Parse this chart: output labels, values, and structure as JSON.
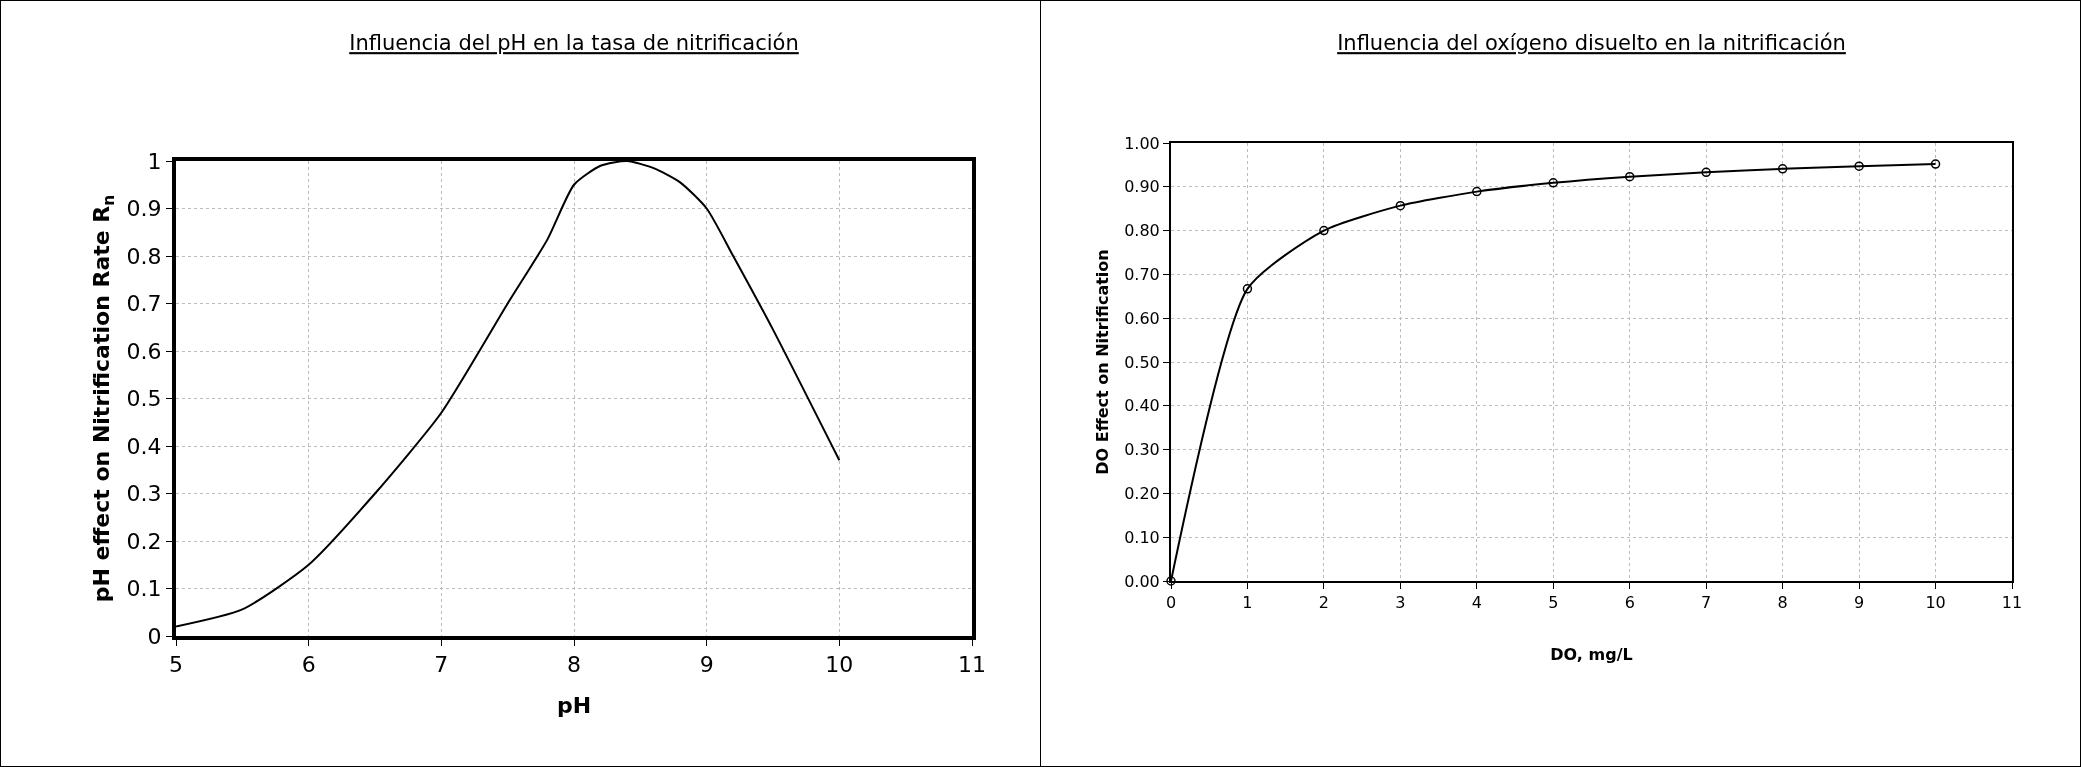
{
  "chart_data": [
    {
      "type": "line",
      "title": "Influencia del pH en la tasa de nitrificación",
      "xlabel": "pH",
      "ylabel": "pH effect on Nitrification Rate R$_{n}$",
      "x": [
        5,
        5.5,
        6,
        6.5,
        7,
        7.5,
        7.8,
        8,
        8.2,
        8.4,
        8.6,
        8.8,
        9,
        9.2,
        9.5,
        10
      ],
      "series": [
        {
          "color": "#000000",
          "values": [
            0.02,
            0.056,
            0.15,
            0.3,
            0.47,
            0.7,
            0.835,
            0.95,
            0.99,
            1.0,
            0.985,
            0.955,
            0.9,
            0.8,
            0.645,
            0.37
          ]
        }
      ],
      "xlim": [
        5,
        11
      ],
      "xticks": [
        5,
        6,
        7,
        8,
        9,
        10,
        11
      ],
      "ylim": [
        0,
        1
      ],
      "yticks": [
        0,
        0.1,
        0.2,
        0.3,
        0.4,
        0.5,
        0.6,
        0.7,
        0.8,
        0.9,
        1
      ],
      "grid": true,
      "marker": "none",
      "line_style": "solid"
    },
    {
      "type": "line",
      "title": "Influencia del oxígeno disuelto en la nitrificación",
      "xlabel": "DO, mg/L",
      "ylabel": "DO Effect on Nitrification",
      "x": [
        0,
        1,
        2,
        3,
        4,
        5,
        6,
        7,
        8,
        9,
        10
      ],
      "series": [
        {
          "color": "#000000",
          "values": [
            0,
            0.667,
            0.8,
            0.857,
            0.889,
            0.909,
            0.923,
            0.933,
            0.941,
            0.947,
            0.952
          ]
        }
      ],
      "xlim": [
        0,
        11
      ],
      "xticks": [
        0,
        1,
        2,
        3,
        4,
        5,
        6,
        7,
        8,
        9,
        10,
        11
      ],
      "ylim": [
        0,
        1
      ],
      "yticks": [
        {
          "value": 0,
          "label": "0.00"
        },
        {
          "value": 0.1,
          "label": "0.10"
        },
        {
          "value": 0.2,
          "label": "0.20"
        },
        {
          "value": 0.3,
          "label": "0.30"
        },
        {
          "value": 0.4,
          "label": "0.40"
        },
        {
          "value": 0.5,
          "label": "0.50"
        },
        {
          "value": 0.6,
          "label": "0.60"
        },
        {
          "value": 0.7,
          "label": "0.70"
        },
        {
          "value": 0.8,
          "label": "0.80"
        },
        {
          "value": 0.9,
          "label": "0.90"
        },
        {
          "value": 1,
          "label": "1.00"
        }
      ],
      "grid": true,
      "marker": "circle",
      "line_style": "solid"
    }
  ]
}
